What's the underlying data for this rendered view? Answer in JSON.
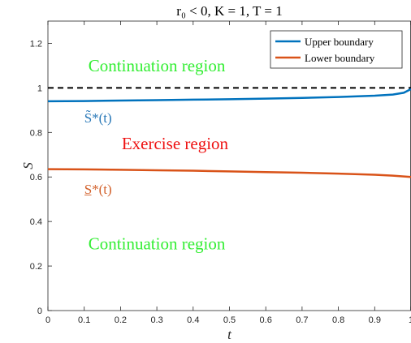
{
  "chart_data": {
    "type": "line",
    "title": "r₀ < 0, K = 1, T = 1",
    "xlabel": "t",
    "ylabel": "S",
    "xlim": [
      0,
      1
    ],
    "ylim": [
      0,
      1.3
    ],
    "x_ticks": [
      "0",
      "0.1",
      "0.2",
      "0.3",
      "0.4",
      "0.5",
      "0.6",
      "0.7",
      "0.8",
      "0.9",
      "1"
    ],
    "y_ticks": [
      "0",
      "0.2",
      "0.4",
      "0.6",
      "0.8",
      "1",
      "1.2"
    ],
    "grid": false,
    "legend_position": "top-right",
    "series": [
      {
        "name": "Upper boundary",
        "color": "#0072BD",
        "x": [
          0,
          0.1,
          0.2,
          0.3,
          0.4,
          0.5,
          0.6,
          0.7,
          0.8,
          0.9,
          0.95,
          0.98,
          1.0
        ],
        "y": [
          0.94,
          0.941,
          0.943,
          0.945,
          0.947,
          0.949,
          0.952,
          0.955,
          0.959,
          0.965,
          0.97,
          0.978,
          0.995
        ]
      },
      {
        "name": "Lower boundary",
        "color": "#D95319",
        "x": [
          0,
          0.1,
          0.2,
          0.3,
          0.4,
          0.5,
          0.6,
          0.7,
          0.8,
          0.9,
          0.95,
          1.0
        ],
        "y": [
          0.635,
          0.634,
          0.632,
          0.63,
          0.628,
          0.625,
          0.622,
          0.619,
          0.615,
          0.61,
          0.606,
          0.6
        ]
      }
    ],
    "reference_line": {
      "y": 1,
      "style": "dashed",
      "color": "#000000"
    },
    "annotations": [
      {
        "text": "Continuation region",
        "x": 0.3,
        "y": 1.1,
        "color": "#33ee33"
      },
      {
        "text": "Exercise region",
        "x": 0.35,
        "y": 0.75,
        "color": "#ee1111"
      },
      {
        "text": "Continuation region",
        "x": 0.3,
        "y": 0.3,
        "color": "#33ee33"
      },
      {
        "text": "S̃*(t)",
        "x": 0.1,
        "y": 0.87,
        "color": "#2a79b8"
      },
      {
        "text": "S̲*(t)",
        "x": 0.1,
        "y": 0.55,
        "color": "#d2602a"
      }
    ]
  }
}
